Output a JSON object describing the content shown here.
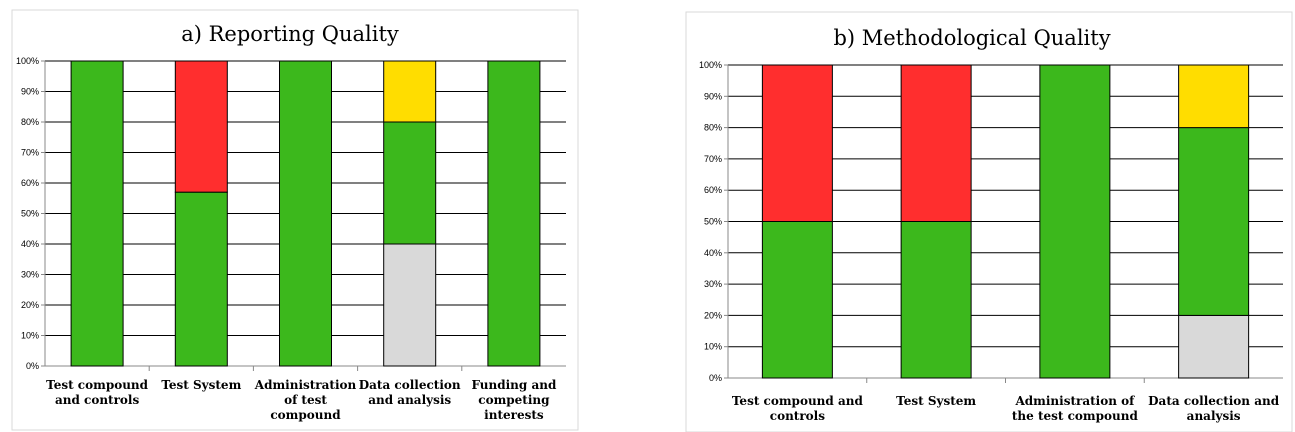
{
  "chart_data": [
    {
      "type": "bar",
      "stacked": true,
      "title": "a) Reporting Quality",
      "categories": [
        [
          "Test compound",
          "and controls"
        ],
        [
          "Test System"
        ],
        [
          "Administration",
          "of test",
          "compound"
        ],
        [
          "Data collection",
          "and analysis"
        ],
        [
          "Funding and",
          "competing",
          "interests"
        ]
      ],
      "series": [
        {
          "color": "#d9d9d9",
          "values": [
            0,
            0,
            0,
            40,
            0
          ]
        },
        {
          "color": "#3cb81c",
          "values": [
            100,
            57,
            100,
            40,
            100
          ]
        },
        {
          "color": "#ffdd00",
          "values": [
            0,
            0,
            0,
            20,
            0
          ]
        },
        {
          "color": "#ff2e2e",
          "values": [
            0,
            43,
            0,
            0,
            0
          ]
        }
      ],
      "ylim": [
        0,
        100
      ],
      "yticks": [
        "0%",
        "10%",
        "20%",
        "30%",
        "40%",
        "50%",
        "60%",
        "70%",
        "80%",
        "90%",
        "100%"
      ],
      "grid": true
    },
    {
      "type": "bar",
      "stacked": true,
      "title": "b) Methodological Quality",
      "categories": [
        [
          "Test compound and",
          "controls"
        ],
        [
          "Test System"
        ],
        [
          "Administration of",
          "the test compound"
        ],
        [
          "Data collection and",
          "analysis"
        ]
      ],
      "series": [
        {
          "color": "#d9d9d9",
          "values": [
            0,
            0,
            0,
            20
          ]
        },
        {
          "color": "#3cb81c",
          "values": [
            50,
            50,
            100,
            60
          ]
        },
        {
          "color": "#ffdd00",
          "values": [
            0,
            0,
            0,
            20
          ]
        },
        {
          "color": "#ff2e2e",
          "values": [
            50,
            50,
            0,
            0
          ]
        }
      ],
      "ylim": [
        0,
        100
      ],
      "yticks": [
        "0%",
        "10%",
        "20%",
        "30%",
        "40%",
        "50%",
        "60%",
        "70%",
        "80%",
        "90%",
        "100%"
      ],
      "grid": true
    }
  ]
}
